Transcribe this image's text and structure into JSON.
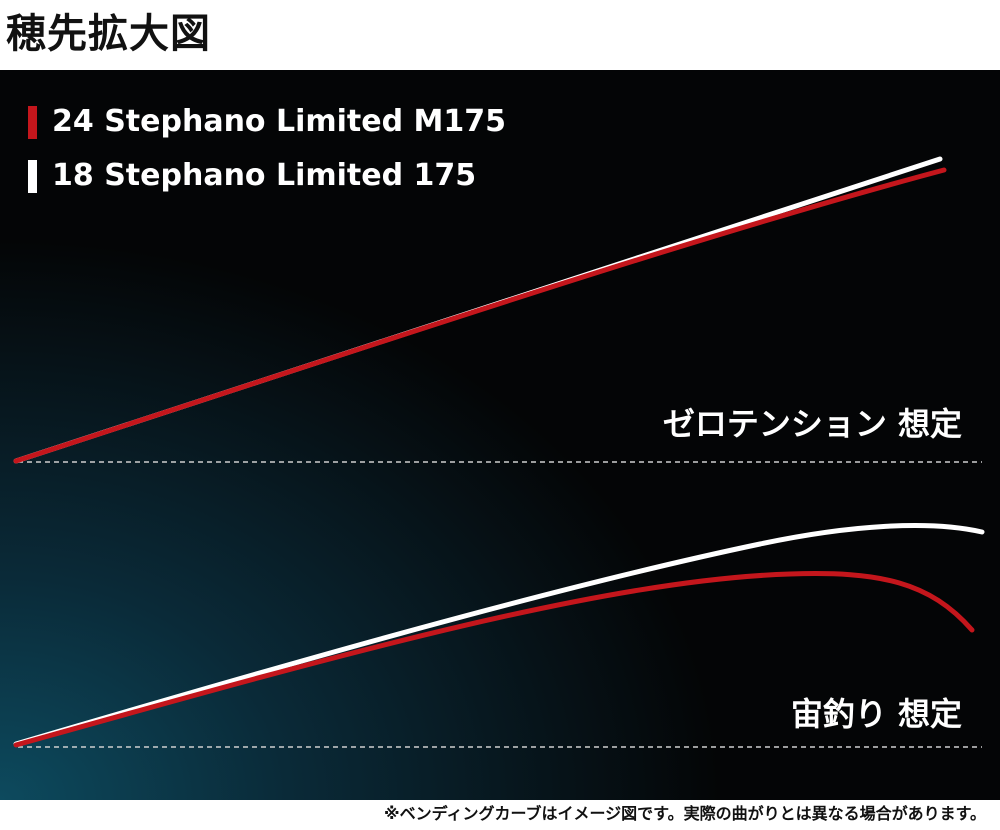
{
  "header": {
    "title": "穂先拡大図"
  },
  "legend": [
    {
      "label": "24 Stephano Limited M175",
      "color": "#c4161c"
    },
    {
      "label": "18 Stephano Limited 175",
      "color": "#ffffff"
    }
  ],
  "scenarios": [
    {
      "label": "ゼロテンション 想定"
    },
    {
      "label": "宙釣り 想定"
    }
  ],
  "footnote": "※ベンディングカーブはイメージ図です。実際の曲がりとは異なる場合があります。",
  "colors": {
    "panel_background": "#040506",
    "accent_red": "#c4161c",
    "white": "#ffffff"
  }
}
